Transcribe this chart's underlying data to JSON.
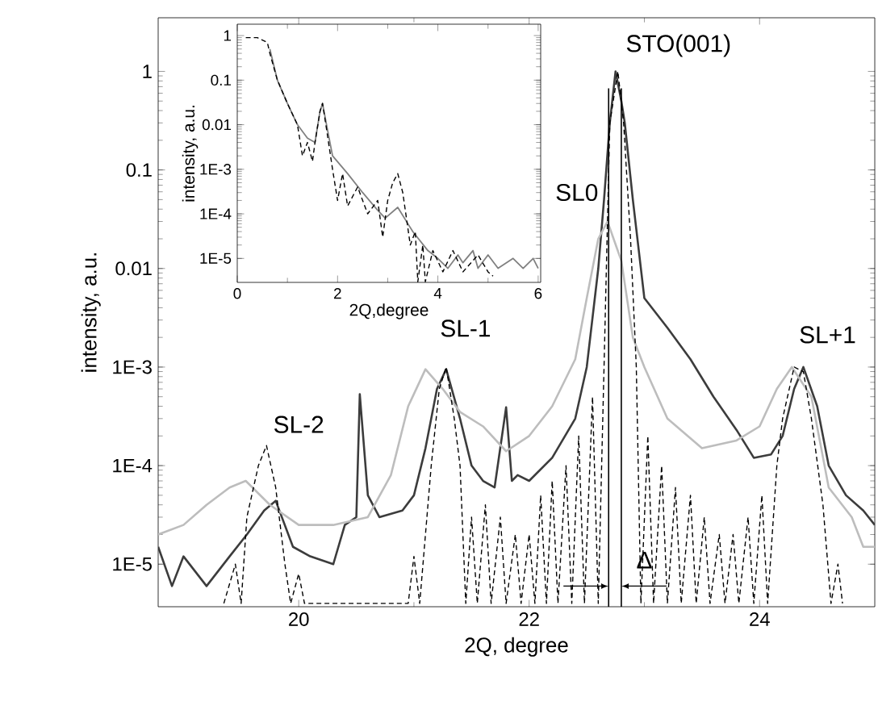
{
  "chart_data": [
    {
      "type": "line",
      "xlabel": "2Q, degree",
      "ylabel": "intensity, a.u.",
      "log": "y",
      "xlim": [
        18.78,
        25
      ],
      "ylim": [
        3.7e-06,
        3.5
      ],
      "xticks": [
        20,
        22,
        24
      ],
      "yticks": [
        {
          "value": 1e-05,
          "label": "1E-5"
        },
        {
          "value": 0.0001,
          "label": "1E-4"
        },
        {
          "value": 0.001,
          "label": "1E-3"
        },
        0.01,
        0.1,
        1
      ],
      "series": [
        {
          "color": "#3c3c3c",
          "line_style": "solid",
          "x": [
            18.78,
            18.9,
            19.0,
            19.2,
            19.4,
            19.55,
            19.7,
            19.8,
            19.95,
            20.1,
            20.3,
            20.4,
            20.5,
            20.53,
            20.6,
            20.7,
            20.9,
            21.0,
            21.1,
            21.2,
            21.28,
            21.4,
            21.5,
            21.6,
            21.7,
            21.8,
            21.85,
            21.9,
            22.0,
            22.2,
            22.4,
            22.5,
            22.6,
            22.65,
            22.7,
            22.75,
            22.8,
            22.83,
            22.9,
            23.0,
            23.2,
            23.4,
            23.6,
            23.8,
            23.95,
            24.1,
            24.2,
            24.3,
            24.38,
            24.5,
            24.6,
            24.75,
            24.9,
            25.0
          ],
          "values": [
            1.5e-05,
            6e-06,
            1.2e-05,
            6e-06,
            1.2e-05,
            2e-05,
            3.5e-05,
            4.4e-05,
            1.5e-05,
            1.2e-05,
            1e-05,
            2.5e-05,
            3e-05,
            0.00053,
            5e-05,
            3e-05,
            3.5e-05,
            5e-05,
            0.00015,
            0.0006,
            0.00095,
            0.0003,
            0.0001,
            7e-05,
            6e-05,
            0.00039,
            7e-05,
            8e-05,
            7e-05,
            0.00012,
            0.0003,
            0.001,
            0.01,
            0.05,
            0.3,
            1.0,
            0.5,
            0.3,
            0.05,
            0.005,
            0.0025,
            0.0012,
            0.0005,
            0.00023,
            0.00012,
            0.00013,
            0.0002,
            0.0006,
            0.001,
            0.0004,
            0.0001,
            5e-05,
            3.5e-05,
            2.5e-05
          ]
        },
        {
          "color": "#bdbdbd",
          "line_style": "solid",
          "x": [
            18.78,
            19.0,
            19.2,
            19.4,
            19.54,
            19.75,
            20.0,
            20.3,
            20.6,
            20.8,
            20.95,
            21.1,
            21.25,
            21.4,
            21.6,
            21.8,
            22.0,
            22.2,
            22.4,
            22.5,
            22.6,
            22.68,
            22.8,
            22.9,
            23.0,
            23.2,
            23.5,
            23.8,
            24.0,
            24.15,
            24.28,
            24.45,
            24.6,
            24.8,
            24.9,
            25.0
          ],
          "values": [
            2e-05,
            2.5e-05,
            4e-05,
            6e-05,
            7e-05,
            4e-05,
            2.5e-05,
            2.5e-05,
            3e-05,
            8e-05,
            0.0004,
            0.00095,
            0.0006,
            0.00035,
            0.00025,
            0.00014,
            0.0002,
            0.0004,
            0.0012,
            0.005,
            0.02,
            0.03,
            0.012,
            0.002,
            0.001,
            0.0003,
            0.00015,
            0.00018,
            0.00025,
            0.0006,
            0.001,
            0.0005,
            6e-05,
            3e-05,
            1.5e-05,
            1.5e-05
          ]
        },
        {
          "color": "#000000",
          "line_style": "dashed",
          "x": [
            19.35,
            19.45,
            19.5,
            19.55,
            19.65,
            19.72,
            19.8,
            19.88,
            19.93,
            20.0,
            20.05,
            20.95,
            21.0,
            21.05,
            21.1,
            21.15,
            21.22,
            21.28,
            21.35,
            21.4,
            21.45,
            21.5,
            21.55,
            21.62,
            21.67,
            21.75,
            21.8,
            21.88,
            21.93,
            22.0,
            22.05,
            22.1,
            22.15,
            22.2,
            22.25,
            22.32,
            22.37,
            22.43,
            22.48,
            22.55,
            22.6,
            22.65,
            22.7,
            22.77,
            22.82,
            22.88,
            22.93,
            22.97,
            23.03,
            23.08,
            23.15,
            23.2,
            23.27,
            23.32,
            23.4,
            23.45,
            23.52,
            23.57,
            23.65,
            23.7,
            23.77,
            23.82,
            23.9,
            23.95,
            24.02,
            24.07,
            24.15,
            24.2,
            24.3,
            24.38,
            24.45,
            24.55,
            24.62,
            24.68,
            24.72
          ],
          "values": [
            4e-06,
            1e-05,
            4e-06,
            3e-05,
            0.0001,
            0.00016,
            6e-05,
            1e-05,
            4e-06,
            8e-06,
            4e-06,
            4e-06,
            1.2e-05,
            4e-06,
            2e-05,
            0.0001,
            0.0006,
            0.001,
            0.0003,
            0.0001,
            4e-06,
            3e-05,
            4e-06,
            4e-05,
            4e-06,
            3e-05,
            4e-06,
            2e-05,
            4e-06,
            2e-05,
            4e-06,
            5e-05,
            4e-06,
            7e-05,
            4e-06,
            0.0001,
            4e-06,
            0.0002,
            4e-06,
            0.0005,
            4e-06,
            0.001,
            0.3,
            1.0,
            0.3,
            0.02,
            0.001,
            4e-06,
            0.0002,
            4e-06,
            0.0001,
            4e-06,
            6e-05,
            4e-06,
            5e-05,
            4e-06,
            3e-05,
            4e-06,
            2e-05,
            4e-06,
            2e-05,
            4e-06,
            3e-05,
            4e-06,
            5e-05,
            4e-06,
            0.0001,
            0.0003,
            0.001,
            0.0009,
            0.0003,
            4e-05,
            4e-06,
            1e-05,
            4e-06
          ]
        }
      ],
      "ref_lines": [
        {
          "axis": "x",
          "value": 22.69,
          "color": "#000000"
        },
        {
          "axis": "x",
          "value": 22.8,
          "color": "#000000"
        }
      ],
      "annotations": [
        {
          "text": "SL-2",
          "x": 19.72,
          "y": 0.00016
        },
        {
          "text": "SL-1",
          "x": 21.28,
          "y": 0.001
        },
        {
          "text": "SL0",
          "x": 22.68,
          "y": 0.03
        },
        {
          "text": "STO(001)",
          "x": 22.75,
          "y": 1.0
        },
        {
          "text": "SL+1",
          "x": 24.38,
          "y": 0.001
        },
        {
          "text": "Δ",
          "x": 23.0,
          "y": 1.1e-05
        }
      ]
    },
    {
      "type": "line",
      "xlabel": "2Q,degree",
      "ylabel": "intensity, a.u.",
      "log": "y",
      "xlim": [
        0,
        6.05
      ],
      "ylim": [
        2.9e-06,
        1.8
      ],
      "xticks": [
        0,
        2,
        4,
        6
      ],
      "yticks": [
        {
          "value": 1e-05,
          "label": "1E-5"
        },
        {
          "value": 0.0001,
          "label": "1E-4"
        },
        {
          "value": 0.001,
          "label": "1E-3"
        },
        0.01,
        0.1,
        1
      ],
      "series": [
        {
          "color": "#808080",
          "line_style": "solid",
          "x": [
            0.65,
            0.8,
            1.0,
            1.2,
            1.4,
            1.55,
            1.65,
            1.7,
            1.78,
            1.9,
            2.2,
            2.5,
            2.8,
            2.95,
            3.2,
            3.5,
            3.8,
            4.0,
            4.2,
            4.4,
            4.5,
            4.7,
            4.8,
            5.0,
            5.2,
            5.5,
            5.7,
            5.9,
            6.0
          ],
          "values": [
            0.5,
            0.1,
            0.03,
            0.01,
            0.005,
            0.004,
            0.02,
            0.03,
            0.01,
            0.002,
            0.0008,
            0.0003,
            0.00012,
            8e-05,
            0.00014,
            4e-05,
            1.5e-05,
            1e-05,
            6e-06,
            1.2e-05,
            8e-06,
            1.5e-05,
            6e-06,
            1.2e-05,
            6e-06,
            1e-05,
            6e-06,
            1e-05,
            6e-06
          ]
        },
        {
          "color": "#000000",
          "line_style": "dashed",
          "x": [
            0.17,
            0.4,
            0.6,
            0.65,
            0.8,
            1.0,
            1.2,
            1.3,
            1.4,
            1.5,
            1.55,
            1.65,
            1.7,
            1.78,
            1.9,
            2.0,
            2.1,
            2.2,
            2.4,
            2.6,
            2.8,
            2.9,
            3.0,
            3.1,
            3.2,
            3.3,
            3.45,
            3.55,
            3.6,
            3.7,
            3.75,
            3.9,
            4.1,
            4.3,
            4.5,
            4.8,
            5.0,
            5.1
          ],
          "values": [
            0.9,
            0.9,
            0.7,
            0.4,
            0.1,
            0.03,
            0.01,
            0.002,
            0.004,
            0.0015,
            0.004,
            0.02,
            0.03,
            0.008,
            0.001,
            0.0002,
            0.0008,
            0.00015,
            0.0004,
            0.0001,
            0.0002,
            3e-05,
            0.0002,
            0.0005,
            0.0008,
            0.0003,
            2e-05,
            4e-05,
            3e-06,
            2e-05,
            3e-06,
            1.5e-05,
            5e-06,
            1.5e-05,
            5e-06,
            1.2e-05,
            5e-06,
            4e-06
          ]
        }
      ]
    }
  ]
}
